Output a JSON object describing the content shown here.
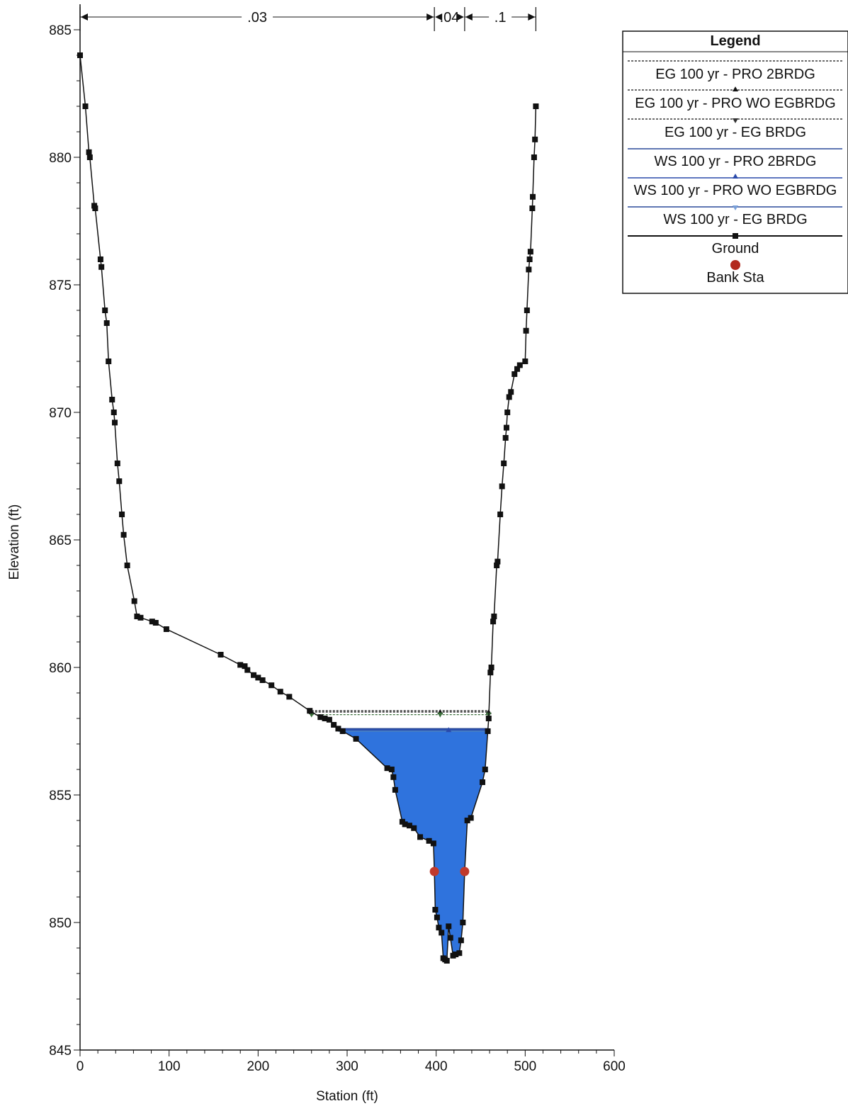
{
  "chart_data": {
    "type": "line",
    "xlabel": "Station (ft)",
    "ylabel": "Elevation (ft)",
    "xlim": [
      0,
      600
    ],
    "ylim": [
      845,
      886
    ],
    "x_ticks": [
      0,
      100,
      200,
      300,
      400,
      500,
      600
    ],
    "y_ticks": [
      845,
      850,
      855,
      860,
      865,
      870,
      875,
      880,
      885
    ],
    "grid": false,
    "legend": {
      "title": "Legend",
      "position": "top-right",
      "entries": [
        "EG 100 yr - PRO 2BRDG",
        "EG 100 yr - PRO WO EGBRDG",
        "EG 100 yr - EG BRDG",
        "WS 100 yr - PRO 2BRDG",
        "WS 100 yr - PRO WO EGBRDG",
        "WS 100 yr - EG BRDG",
        "Ground",
        "Bank Sta"
      ]
    },
    "manning_n": [
      {
        "label": ".03",
        "from": 0,
        "to": 398
      },
      {
        "label": ".04",
        "from": 398,
        "to": 432
      },
      {
        "label": ".1",
        "from": 432,
        "to": 512
      }
    ],
    "ground": {
      "name": "Ground",
      "color": "#111111",
      "points": [
        [
          0,
          884
        ],
        [
          6,
          882
        ],
        [
          10,
          880.2
        ],
        [
          11,
          880
        ],
        [
          16,
          878.1
        ],
        [
          17,
          878
        ],
        [
          23,
          876
        ],
        [
          24,
          875.7
        ],
        [
          28,
          874
        ],
        [
          30,
          873.5
        ],
        [
          32,
          872
        ],
        [
          36,
          870.5
        ],
        [
          38,
          870
        ],
        [
          39,
          869.6
        ],
        [
          42,
          868
        ],
        [
          44,
          867.3
        ],
        [
          47,
          866
        ],
        [
          49,
          865.2
        ],
        [
          53,
          864
        ],
        [
          61,
          862.6
        ],
        [
          64,
          862
        ],
        [
          68,
          861.95
        ],
        [
          81,
          861.8
        ],
        [
          85,
          861.75
        ],
        [
          97,
          861.5
        ],
        [
          158,
          860.5
        ],
        [
          180,
          860.1
        ],
        [
          185,
          860.05
        ],
        [
          188,
          859.9
        ],
        [
          195,
          859.7
        ],
        [
          200,
          859.6
        ],
        [
          205,
          859.5
        ],
        [
          215,
          859.3
        ],
        [
          225,
          859.05
        ],
        [
          235,
          858.85
        ],
        [
          258,
          858.3
        ],
        [
          270,
          858.05
        ],
        [
          275,
          858
        ],
        [
          280,
          857.95
        ],
        [
          285,
          857.75
        ],
        [
          290,
          857.6
        ],
        [
          295,
          857.5
        ],
        [
          310,
          857.2
        ],
        [
          345,
          856.05
        ],
        [
          350,
          856
        ],
        [
          352,
          855.7
        ],
        [
          354,
          855.2
        ],
        [
          362,
          853.95
        ],
        [
          365,
          853.85
        ],
        [
          370,
          853.8
        ],
        [
          375,
          853.7
        ],
        [
          382,
          853.35
        ],
        [
          392,
          853.2
        ],
        [
          397,
          853.1
        ],
        [
          398,
          852
        ],
        [
          399,
          850.5
        ],
        [
          401,
          850.2
        ],
        [
          403,
          849.8
        ],
        [
          406,
          849.6
        ],
        [
          408,
          848.6
        ],
        [
          410,
          848.55
        ],
        [
          412,
          848.5
        ],
        [
          414,
          849.85
        ],
        [
          416,
          849.4
        ],
        [
          419,
          848.7
        ],
        [
          422,
          848.75
        ],
        [
          426,
          848.8
        ],
        [
          428,
          849.3
        ],
        [
          430,
          850
        ],
        [
          432,
          852
        ],
        [
          435,
          854
        ],
        [
          439,
          854.1
        ],
        [
          452,
          855.5
        ],
        [
          455,
          856
        ],
        [
          458,
          857.5
        ],
        [
          459,
          858
        ],
        [
          461,
          859.8
        ],
        [
          462,
          860
        ],
        [
          464,
          861.8
        ],
        [
          465,
          862
        ],
        [
          468,
          864
        ],
        [
          469,
          864.15
        ],
        [
          472,
          866
        ],
        [
          474,
          867.1
        ],
        [
          476,
          868
        ],
        [
          478,
          869
        ],
        [
          479,
          869.4
        ],
        [
          480,
          870
        ],
        [
          482,
          870.6
        ],
        [
          484,
          870.8
        ],
        [
          488,
          871.5
        ],
        [
          491,
          871.7
        ],
        [
          494,
          871.85
        ],
        [
          500,
          872
        ],
        [
          501,
          873.2
        ],
        [
          502,
          874
        ],
        [
          504,
          875.6
        ],
        [
          505,
          876
        ],
        [
          506,
          876.3
        ],
        [
          508,
          878
        ],
        [
          508.5,
          878.45
        ],
        [
          510,
          880
        ],
        [
          511,
          880.7
        ],
        [
          512,
          882
        ]
      ]
    },
    "energy_grade": [
      {
        "name": "EG 100 yr - PRO 2BRDG",
        "elevation": 858.3,
        "x_start": 260,
        "x_end": 459,
        "color": "#111111",
        "marker": "none"
      },
      {
        "name": "EG 100 yr - PRO WO EGBRDG",
        "elevation": 858.25,
        "x_start": 260,
        "x_end": 459,
        "color": "#111111",
        "marker": "triangle-up"
      },
      {
        "name": "EG 100 yr - EG BRDG",
        "elevation": 858.15,
        "x_start": 260,
        "x_end": 459,
        "color": "#3a6f3a",
        "marker": "triangle-down"
      }
    ],
    "water_surface": [
      {
        "name": "WS 100 yr - PRO 2BRDG",
        "elevation": 857.6,
        "color": "#2a4a9a"
      },
      {
        "name": "WS 100 yr - PRO WO EGBRDG",
        "elevation": 857.55,
        "color": "#2a4aaa"
      },
      {
        "name": "WS 100 yr - EG BRDG",
        "elevation": 857.5,
        "color": "#4a7fbf"
      }
    ],
    "water_fill_color": "#2f73dd",
    "bank_stations": [
      {
        "x": 398,
        "elevation": 852
      },
      {
        "x": 432,
        "elevation": 852
      }
    ],
    "bank_color": "#c0392b"
  }
}
